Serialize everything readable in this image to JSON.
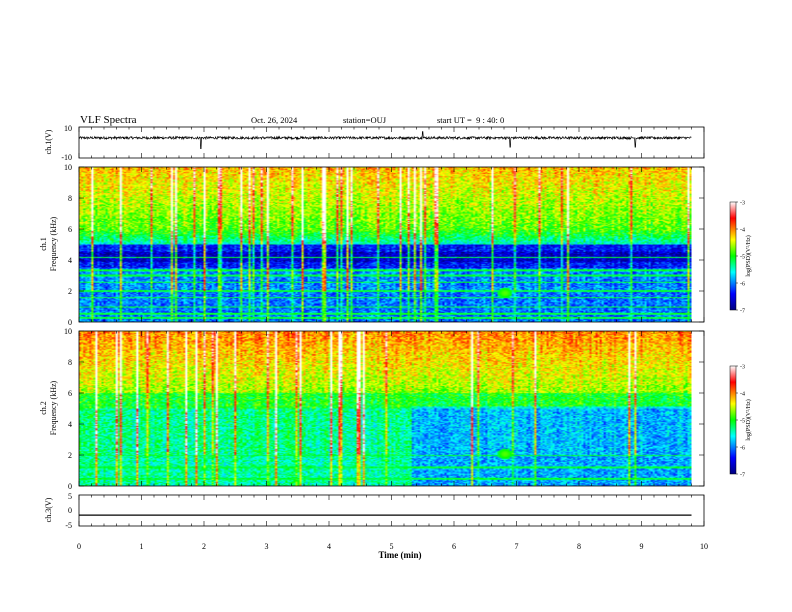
{
  "header": {
    "title": "VLF Spectra",
    "date": "Oct. 26, 2024",
    "station": "station=OUJ",
    "start_ut": "start UT =  9 : 40: 0"
  },
  "chart_data": [
    {
      "type": "line",
      "panel": "ch1-waveform",
      "ylabel": "ch.1(V)",
      "ylim": [
        -10,
        10
      ],
      "y_ticks": [
        "10",
        "-10"
      ],
      "baseline": 3,
      "noise_amplitude": 0.8,
      "x_range_min": [
        0,
        9.8
      ],
      "spikes": [
        {
          "t": 1.95,
          "v": -4
        },
        {
          "t": 5.5,
          "v": 7
        },
        {
          "t": 6.9,
          "v": -3
        },
        {
          "t": 8.9,
          "v": -3
        }
      ]
    },
    {
      "type": "heatmap",
      "panel": "ch1-spectrogram",
      "ylabel_line1": "ch.1",
      "ylabel_line2": "Frequency (kHz)",
      "ylim": [
        0,
        10
      ],
      "y_ticks": [
        "0",
        "2",
        "4",
        "6",
        "8",
        "10"
      ],
      "x_range_min": [
        0,
        9.8
      ],
      "colorbar": {
        "label": "log(PSD)(V²/Hz)",
        "ticks": [
          "-3",
          "-4",
          "-5",
          "-6",
          "-7"
        ],
        "range": [
          -7,
          -3
        ]
      },
      "line_frequencies_khz": [
        0.3,
        0.55,
        1.0,
        1.6,
        2.05,
        2.6,
        3.05,
        3.35,
        4.2
      ],
      "features": [
        {
          "type": "blob",
          "t": 6.8,
          "f": 1.9
        }
      ]
    },
    {
      "type": "heatmap",
      "panel": "ch2-spectrogram",
      "ylabel_line1": "ch.2",
      "ylabel_line2": "Frequency (kHz)",
      "ylim": [
        0,
        10
      ],
      "y_ticks": [
        "0",
        "2",
        "4",
        "6",
        "8",
        "10"
      ],
      "x_range_min": [
        0,
        9.8
      ],
      "colorbar": {
        "label": "log(PSD)(V²/Hz)",
        "ticks": [
          "-3",
          "-4",
          "-5",
          "-6",
          "-7"
        ],
        "range": [
          -7,
          -3
        ]
      },
      "line_frequencies_khz": [
        0.5,
        1.25,
        2.0
      ],
      "features": [
        {
          "type": "transition",
          "t": 5.3
        },
        {
          "type": "blob",
          "t": 6.8,
          "f": 2.1
        }
      ]
    },
    {
      "type": "line",
      "panel": "ch3-waveform",
      "ylabel": "ch.3(V)",
      "ylim": [
        -5,
        5
      ],
      "y_ticks": [
        "5",
        "0",
        "-5"
      ],
      "baseline": -1.5,
      "x_range_min": [
        0,
        9.8
      ]
    }
  ],
  "x_axis": {
    "label": "Time (min)",
    "range": [
      0,
      10
    ],
    "ticks": [
      "0",
      "1",
      "2",
      "3",
      "4",
      "5",
      "6",
      "7",
      "8",
      "9",
      "10"
    ]
  }
}
